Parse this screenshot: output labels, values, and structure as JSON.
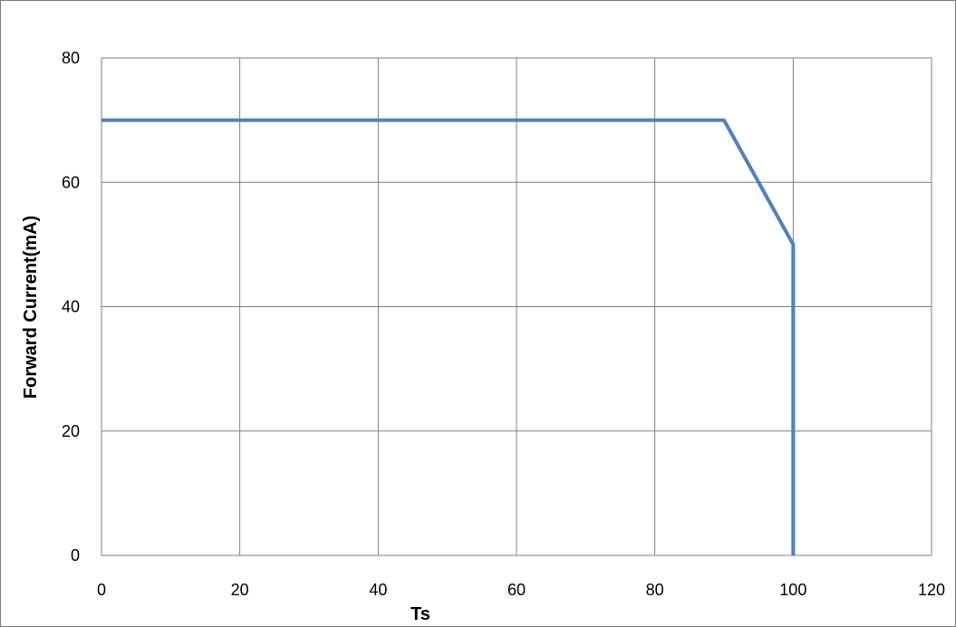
{
  "chart_data": {
    "type": "line",
    "title": "",
    "xlabel": "Ts",
    "ylabel": "Forward Current(mA)",
    "xlim": [
      0,
      120
    ],
    "ylim": [
      0,
      80
    ],
    "x_ticks": [
      0,
      20,
      40,
      60,
      80,
      100,
      120
    ],
    "y_ticks": [
      0,
      20,
      40,
      60,
      80
    ],
    "grid": true,
    "legend": "none",
    "series": [
      {
        "color": "#4f81bd",
        "points": [
          {
            "x": 0,
            "y": 70
          },
          {
            "x": 90,
            "y": 70
          },
          {
            "x": 100,
            "y": 50
          },
          {
            "x": 100,
            "y": 0
          }
        ]
      }
    ]
  },
  "colors": {
    "gridline": "#7f7f7f",
    "frame": "#7f7f7f",
    "series_line": "#4f81bd"
  }
}
